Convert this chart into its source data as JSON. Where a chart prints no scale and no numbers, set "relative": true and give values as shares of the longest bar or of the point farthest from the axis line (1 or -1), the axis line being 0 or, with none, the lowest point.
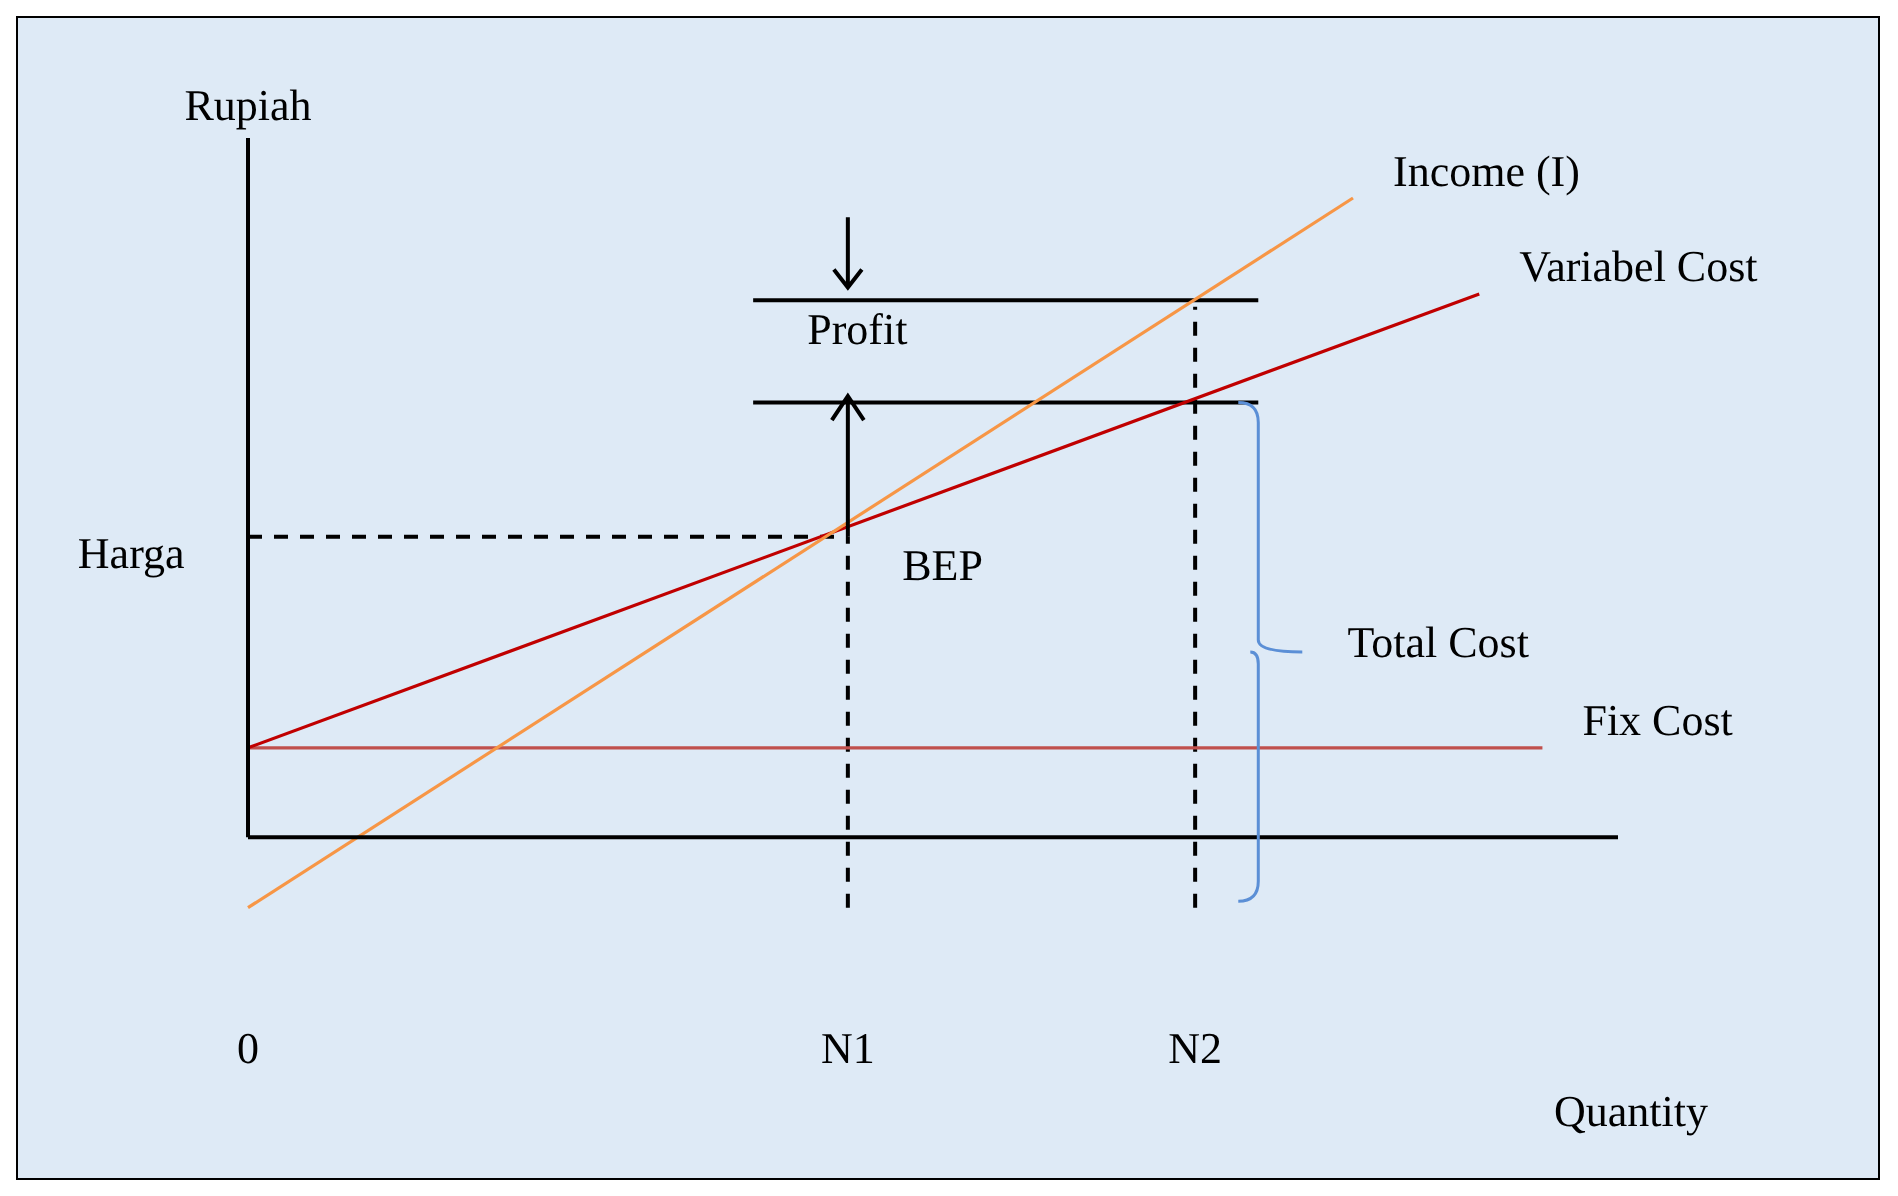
{
  "chart_data": {
    "type": "line",
    "relative": true,
    "xlabel": "Quantity",
    "ylabel": "Rupiah",
    "marker": "none",
    "categories": [
      "0",
      null,
      null,
      null,
      null,
      null,
      null,
      null,
      null,
      null,
      null,
      null,
      null,
      null,
      null,
      null,
      null,
      null,
      null,
      "N1",
      null,
      null,
      null,
      null,
      null,
      null,
      null,
      null,
      null,
      null,
      "N2",
      null,
      null,
      null,
      null,
      null,
      null,
      null,
      null,
      null,
      null,
      null,
      null
    ],
    "series": [
      {
        "name": "Income (I)",
        "color": "#f79646",
        "values": [
          -0.11,
          null,
          null,
          null,
          null,
          null,
          null,
          null,
          null,
          null,
          null,
          null,
          null,
          null,
          null,
          null,
          null,
          null,
          null,
          null,
          null,
          null,
          null,
          null,
          null,
          null,
          null,
          null,
          null,
          null,
          null,
          null,
          null,
          null,
          null,
          1.0,
          null,
          null,
          null,
          null,
          null,
          null,
          null
        ]
      },
      {
        "name": "Variabel Cost",
        "color": "#c00000",
        "values": [
          0.14,
          null,
          null,
          null,
          null,
          null,
          null,
          null,
          null,
          null,
          null,
          null,
          null,
          null,
          null,
          null,
          null,
          null,
          null,
          null,
          null,
          null,
          null,
          null,
          null,
          null,
          null,
          null,
          null,
          null,
          null,
          null,
          null,
          null,
          null,
          null,
          null,
          null,
          null,
          0.85,
          null,
          null,
          null
        ]
      },
      {
        "name": "Fix Cost",
        "color": "#c0504d",
        "values": [
          0.14,
          null,
          null,
          null,
          null,
          null,
          null,
          null,
          null,
          null,
          null,
          null,
          null,
          null,
          null,
          null,
          null,
          null,
          null,
          null,
          null,
          null,
          null,
          null,
          null,
          null,
          null,
          null,
          null,
          null,
          null,
          null,
          null,
          null,
          null,
          null,
          null,
          null,
          null,
          null,
          null,
          0.14,
          null
        ]
      },
      {
        "color": "#000000",
        "line_style": "dashed",
        "values": [
          0.47,
          null,
          null,
          null,
          null,
          null,
          null,
          null,
          null,
          null,
          null,
          null,
          null,
          null,
          null,
          null,
          null,
          null,
          null,
          0.47,
          null,
          null,
          null,
          null,
          null,
          null,
          null,
          null,
          null,
          null,
          null,
          null,
          null,
          null,
          null,
          null,
          null,
          null,
          null,
          null,
          null,
          null,
          null
        ]
      },
      {
        "color": "#000000",
        "line_style": "dashed",
        "x": [
          "N1",
          "N1"
        ],
        "values": [
          -0.11,
          0.47
        ]
      },
      {
        "color": "#000000",
        "line_style": "dashed",
        "x": [
          "N2",
          "N2"
        ],
        "values": [
          -0.11,
          0.83
        ]
      },
      {
        "color": "#000000",
        "line_style": "solid",
        "values": [
          null,
          null,
          null,
          null,
          null,
          null,
          null,
          null,
          null,
          null,
          null,
          null,
          null,
          null,
          null,
          null,
          0.84,
          null,
          null,
          null,
          null,
          null,
          null,
          null,
          null,
          null,
          null,
          null,
          null,
          null,
          null,
          null,
          0.84,
          null,
          null,
          null,
          null,
          null,
          null,
          null,
          null,
          null,
          null
        ]
      },
      {
        "color": "#000000",
        "line_style": "solid",
        "values": [
          null,
          null,
          null,
          null,
          null,
          null,
          null,
          null,
          null,
          null,
          null,
          null,
          null,
          null,
          null,
          null,
          0.68,
          null,
          null,
          null,
          null,
          null,
          null,
          null,
          null,
          null,
          null,
          null,
          null,
          null,
          null,
          null,
          0.68,
          null,
          null,
          null,
          null,
          null,
          null,
          null,
          null,
          null,
          null
        ]
      }
    ],
    "annotations": [
      "Profit",
      "BEP",
      "Total Cost",
      "Harga"
    ]
  }
}
